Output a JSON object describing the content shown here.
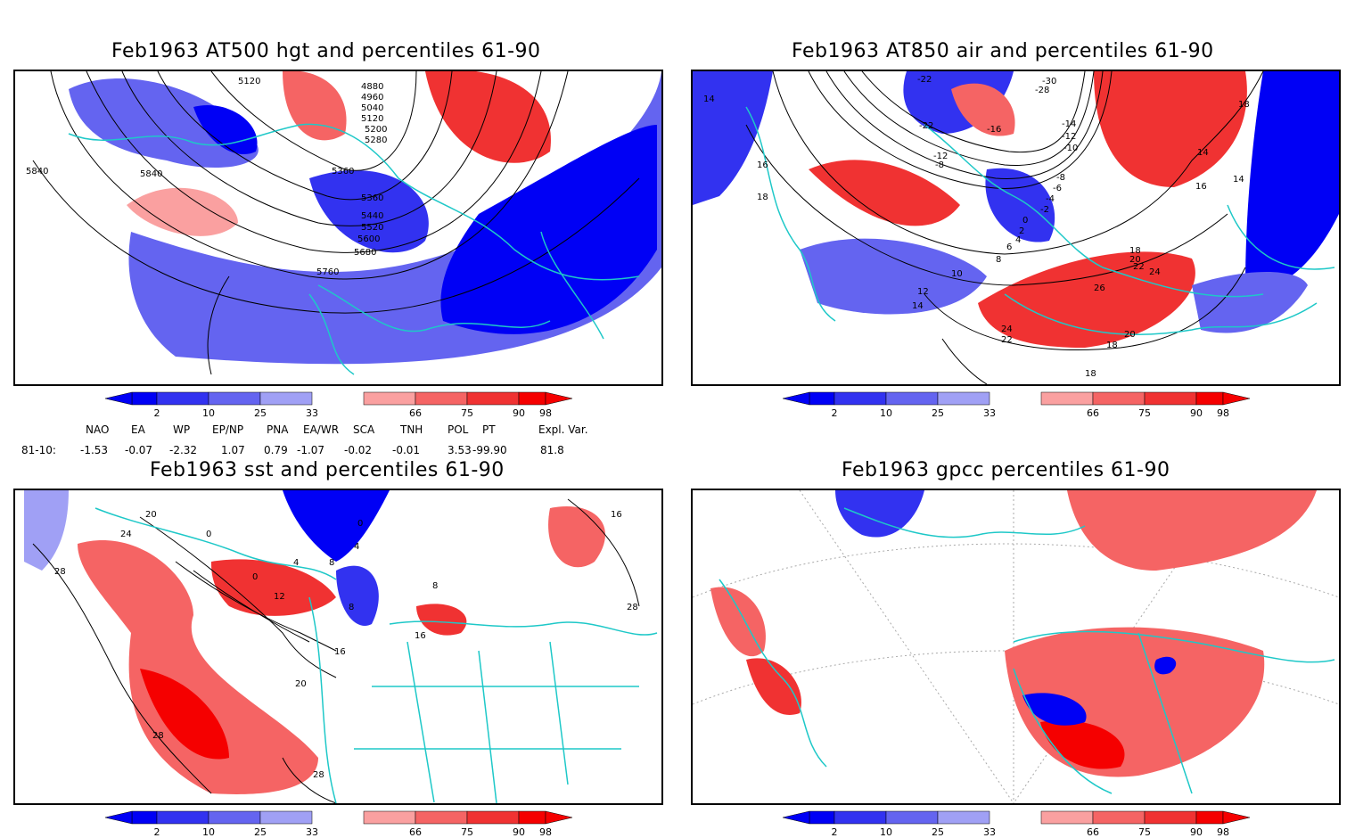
{
  "panels": [
    {
      "id": "p1",
      "title": "Feb1963 AT500 hgt and percentiles 61-90",
      "contour_labels": [
        "5120",
        "4880",
        "4960",
        "5040",
        "5120",
        "5200",
        "5280",
        "5360",
        "5360",
        "5440",
        "5520",
        "5600",
        "5680",
        "5760",
        "5840",
        "5840"
      ]
    },
    {
      "id": "p2",
      "title": "Feb1963 AT850 air and percentiles 61-90",
      "contour_labels": [
        "-22",
        "-30",
        "-28",
        "-22",
        "-16",
        "-14",
        "-12",
        "-10",
        "-12",
        "-8",
        "-8",
        "-6",
        "-4",
        "-2",
        "0",
        "2",
        "4",
        "6",
        "8",
        "10",
        "12",
        "14",
        "14",
        "16",
        "18",
        "18",
        "14",
        "14",
        "16",
        "18",
        "20",
        "22",
        "24",
        "26",
        "24",
        "22",
        "20",
        "18",
        "18"
      ]
    },
    {
      "id": "p3",
      "title": "Feb1963 sst and percentiles 61-90",
      "contour_labels": [
        "24",
        "20",
        "28",
        "0",
        "0",
        "4",
        "8",
        "12",
        "16",
        "20",
        "28",
        "28",
        "28",
        "8",
        "16",
        "8",
        "4",
        "0",
        "16"
      ]
    },
    {
      "id": "p4",
      "title": "Feb1963 gpcc percentiles 61-90",
      "contour_labels": []
    }
  ],
  "colorbar": {
    "ticks": [
      "2",
      "10",
      "25",
      "33",
      "66",
      "75",
      "90",
      "98"
    ],
    "colors": {
      "below": "#0000f5",
      "b10": "#3232f0",
      "b25": "#6464f0",
      "b33": "#a0a0f5",
      "a66": "#faa0a0",
      "a75": "#f56464",
      "a90": "#f03232",
      "above": "#f50000"
    }
  },
  "indices": {
    "headers": [
      "NAO",
      "EA",
      "WP",
      "EP/NP",
      "PNA",
      "EA/WR",
      "SCA",
      "TNH",
      "POL",
      "PT",
      "Expl. Var."
    ],
    "row_label": "81-10:",
    "values": [
      "-1.53",
      "-0.07",
      "-2.32",
      "1.07",
      "0.79",
      "-1.07",
      "-0.02",
      "-0.01",
      "3.53",
      "-99.90",
      "81.8"
    ]
  }
}
